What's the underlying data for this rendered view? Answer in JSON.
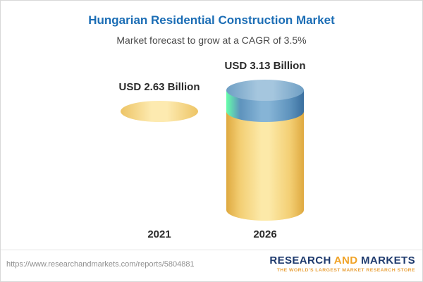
{
  "header": {
    "title": "Hungarian Residential Construction Market",
    "subtitle": "Market forecast to grow at a CAGR of 3.5%"
  },
  "chart_data": {
    "type": "bar",
    "categories": [
      "2021",
      "2026"
    ],
    "values": [
      2.63,
      3.13
    ],
    "value_labels": [
      "USD 2.63 Billion",
      "USD 3.13 Billion"
    ],
    "title": "Hungarian Residential Construction Market",
    "subtitle": "Market forecast to grow at a CAGR of 3.5%",
    "unit": "USD Billion",
    "cagr_pct": 3.5,
    "legend_position": "none",
    "grid": false,
    "colors": {
      "bar_base": "#f7d886",
      "growth_cap": "#6b9dc2"
    }
  },
  "bars": [
    {
      "year": "2021",
      "label": "USD 2.63 Billion"
    },
    {
      "year": "2026",
      "label": "USD 3.13 Billion"
    }
  ],
  "footer": {
    "url": "https://www.researchandmarkets.com/reports/5804881",
    "brand_research": "RESEARCH",
    "brand_and": "AND",
    "brand_markets": "MARKETS",
    "tagline": "THE WORLD'S LARGEST MARKET RESEARCH STORE"
  }
}
